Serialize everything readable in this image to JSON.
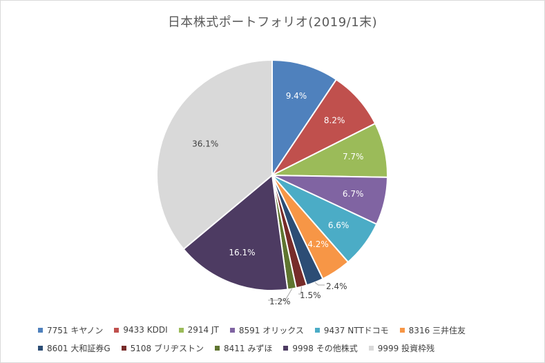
{
  "chart_data": {
    "type": "pie",
    "title": "日本株式ポートフォリオ(2019/1末)",
    "legend_position": "bottom",
    "slices": [
      {
        "label": "7751 キヤノン",
        "value": 9.4,
        "display": "9.4%",
        "color": "#4f81bd",
        "label_placement": "inside"
      },
      {
        "label": "9433 KDDI",
        "value": 8.2,
        "display": "8.2%",
        "color": "#c0504d",
        "label_placement": "inside"
      },
      {
        "label": "2914 JT",
        "value": 7.7,
        "display": "7.7%",
        "color": "#9bbb59",
        "label_placement": "inside"
      },
      {
        "label": "8591 オリックス",
        "value": 6.7,
        "display": "6.7%",
        "color": "#8064a2",
        "label_placement": "inside"
      },
      {
        "label": "9437 NTTドコモ",
        "value": 6.6,
        "display": "6.6%",
        "color": "#4bacc6",
        "label_placement": "inside"
      },
      {
        "label": "8316 三井住友",
        "value": 4.2,
        "display": "4.2%",
        "color": "#f79646",
        "label_placement": "inside"
      },
      {
        "label": "8601 大和証券G",
        "value": 2.4,
        "display": "2.4%",
        "color": "#2c4d75",
        "label_placement": "outside"
      },
      {
        "label": "5108 ブリヂストン",
        "value": 1.5,
        "display": "1.5%",
        "color": "#772c2a",
        "label_placement": "outside"
      },
      {
        "label": "8411 みずほ",
        "value": 1.2,
        "display": "1.2%",
        "color": "#5f7530",
        "label_placement": "outside"
      },
      {
        "label": "9998 その他株式",
        "value": 16.1,
        "display": "16.1%",
        "color": "#4d3b62",
        "label_placement": "inside"
      },
      {
        "label": "9999 投資枠残",
        "value": 36.1,
        "display": "36.1%",
        "color": "#d9d9d9",
        "label_placement": "inside"
      }
    ]
  }
}
